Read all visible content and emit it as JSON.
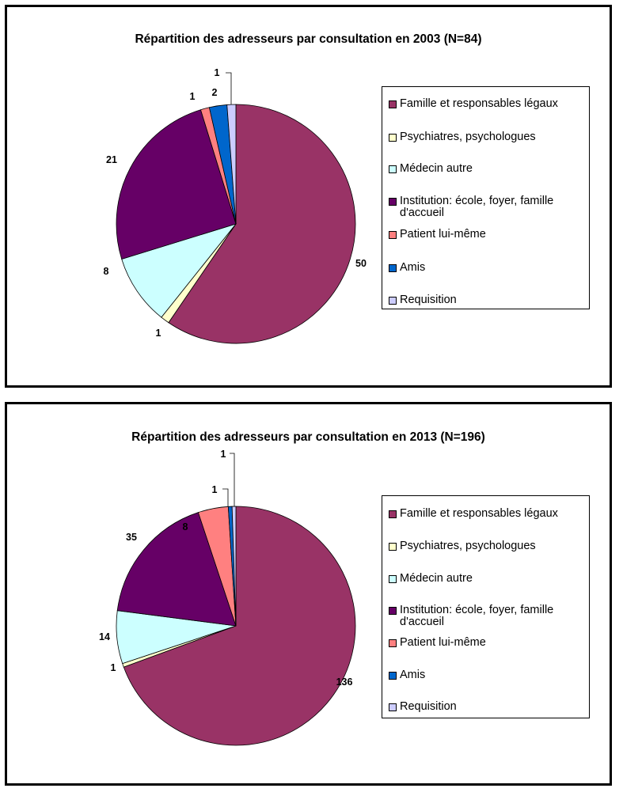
{
  "chart_data": [
    {
      "type": "pie",
      "title": "Répartition des adresseurs par consultation en 2003 (N=84)",
      "categories": [
        "Famille et responsables légaux",
        "Psychiatres, psychologues",
        "Médecin autre",
        "Institution: école, foyer, famille d'accueil",
        "Patient lui-même",
        "Amis",
        "Requisition"
      ],
      "values": [
        50,
        1,
        8,
        21,
        1,
        2,
        1
      ],
      "colors": [
        "#993366",
        "#ffffcc",
        "#ccffff",
        "#660066",
        "#ff8080",
        "#0066cc",
        "#ccccff"
      ],
      "legend_position": "right"
    },
    {
      "type": "pie",
      "title": "Répartition des adresseurs par consultation en 2013 (N=196)",
      "categories": [
        "Famille et responsables légaux",
        "Psychiatres, psychologues",
        "Médecin autre",
        "Institution: école, foyer, famille d'accueil",
        "Patient lui-même",
        "Amis",
        "Requisition"
      ],
      "values": [
        136,
        1,
        14,
        35,
        8,
        1,
        1
      ],
      "colors": [
        "#993366",
        "#ffffcc",
        "#ccffff",
        "#660066",
        "#ff8080",
        "#0066cc",
        "#ccccff"
      ],
      "legend_position": "right"
    }
  ]
}
